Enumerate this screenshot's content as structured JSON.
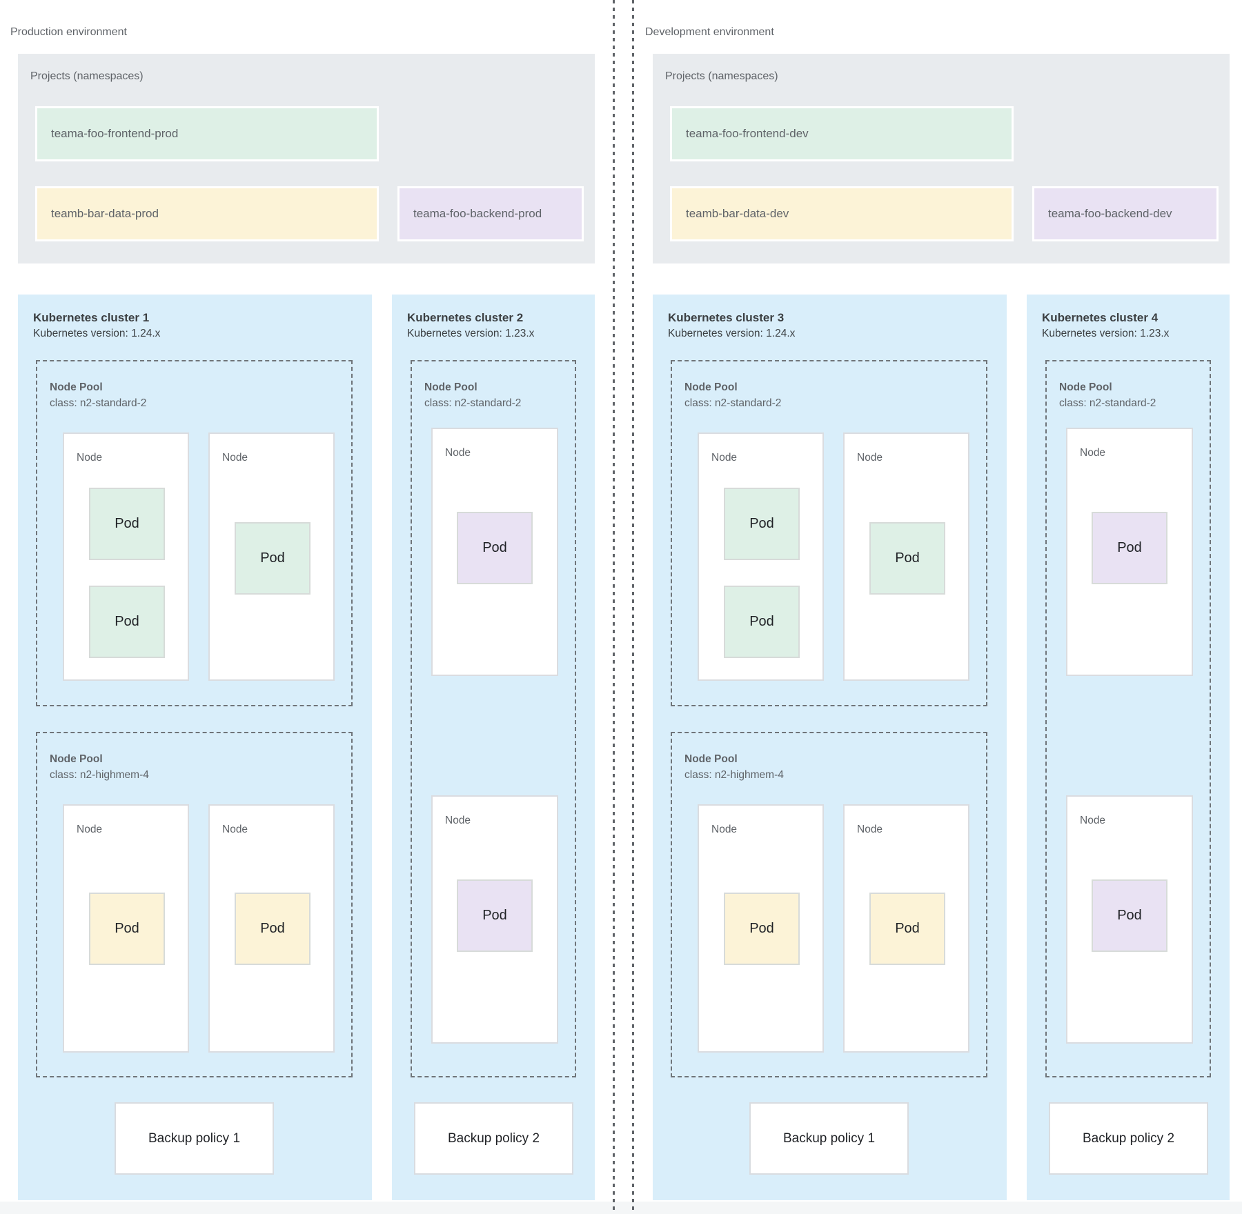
{
  "palette": {
    "cluster_background": "#d9eefa",
    "projects_background": "#e8ebee",
    "namespace_green": "#def0e6",
    "namespace_yellow": "#fcf3d7",
    "namespace_purple": "#e9e2f3"
  },
  "environments": [
    {
      "title": "Production environment",
      "projects": {
        "label": "Projects (namespaces)",
        "namespaces": [
          {
            "name": "teama-foo-frontend-prod",
            "color": "green"
          },
          {
            "name": "teamb-bar-data-prod",
            "color": "yellow"
          },
          {
            "name": "teama-foo-backend-prod",
            "color": "purple"
          }
        ]
      },
      "clusters": [
        {
          "name": "Kubernetes cluster 1",
          "version": "Kubernetes version: 1.24.x",
          "pools": [
            {
              "label": "Node Pool",
              "class_label": "class: n2-standard-2",
              "nodes": [
                {
                  "label": "Node",
                  "pods": [
                    {
                      "label": "Pod",
                      "color": "green"
                    },
                    {
                      "label": "Pod",
                      "color": "green"
                    }
                  ]
                },
                {
                  "label": "Node",
                  "pods": [
                    {
                      "label": "Pod",
                      "color": "green"
                    }
                  ]
                }
              ]
            },
            {
              "label": "Node Pool",
              "class_label": "class: n2-highmem-4",
              "nodes": [
                {
                  "label": "Node",
                  "pods": [
                    {
                      "label": "Pod",
                      "color": "yellow"
                    }
                  ]
                },
                {
                  "label": "Node",
                  "pods": [
                    {
                      "label": "Pod",
                      "color": "yellow"
                    }
                  ]
                }
              ]
            }
          ],
          "backup_policy": "Backup policy 1"
        },
        {
          "name": "Kubernetes cluster 2",
          "version": "Kubernetes version: 1.23.x",
          "pools": [
            {
              "label": "Node Pool",
              "class_label": "class: n2-standard-2",
              "nodes": [
                {
                  "label": "Node",
                  "pods": [
                    {
                      "label": "Pod",
                      "color": "purple"
                    }
                  ]
                },
                {
                  "label": "Node",
                  "pods": [
                    {
                      "label": "Pod",
                      "color": "purple"
                    }
                  ]
                }
              ]
            }
          ],
          "backup_policy": "Backup policy 2"
        }
      ]
    },
    {
      "title": "Development environment",
      "projects": {
        "label": "Projects (namespaces)",
        "namespaces": [
          {
            "name": "teama-foo-frontend-dev",
            "color": "green"
          },
          {
            "name": "teamb-bar-data-dev",
            "color": "yellow"
          },
          {
            "name": "teama-foo-backend-dev",
            "color": "purple"
          }
        ]
      },
      "clusters": [
        {
          "name": "Kubernetes cluster 3",
          "version": "Kubernetes version: 1.24.x",
          "pools": [
            {
              "label": "Node Pool",
              "class_label": "class: n2-standard-2",
              "nodes": [
                {
                  "label": "Node",
                  "pods": [
                    {
                      "label": "Pod",
                      "color": "green"
                    },
                    {
                      "label": "Pod",
                      "color": "green"
                    }
                  ]
                },
                {
                  "label": "Node",
                  "pods": [
                    {
                      "label": "Pod",
                      "color": "green"
                    }
                  ]
                }
              ]
            },
            {
              "label": "Node Pool",
              "class_label": "class: n2-highmem-4",
              "nodes": [
                {
                  "label": "Node",
                  "pods": [
                    {
                      "label": "Pod",
                      "color": "yellow"
                    }
                  ]
                },
                {
                  "label": "Node",
                  "pods": [
                    {
                      "label": "Pod",
                      "color": "yellow"
                    }
                  ]
                }
              ]
            }
          ],
          "backup_policy": "Backup policy 1"
        },
        {
          "name": "Kubernetes cluster 4",
          "version": "Kubernetes version: 1.23.x",
          "pools": [
            {
              "label": "Node Pool",
              "class_label": "class: n2-standard-2",
              "nodes": [
                {
                  "label": "Node",
                  "pods": [
                    {
                      "label": "Pod",
                      "color": "purple"
                    }
                  ]
                },
                {
                  "label": "Node",
                  "pods": [
                    {
                      "label": "Pod",
                      "color": "purple"
                    }
                  ]
                }
              ]
            }
          ],
          "backup_policy": "Backup policy 2"
        }
      ]
    }
  ]
}
